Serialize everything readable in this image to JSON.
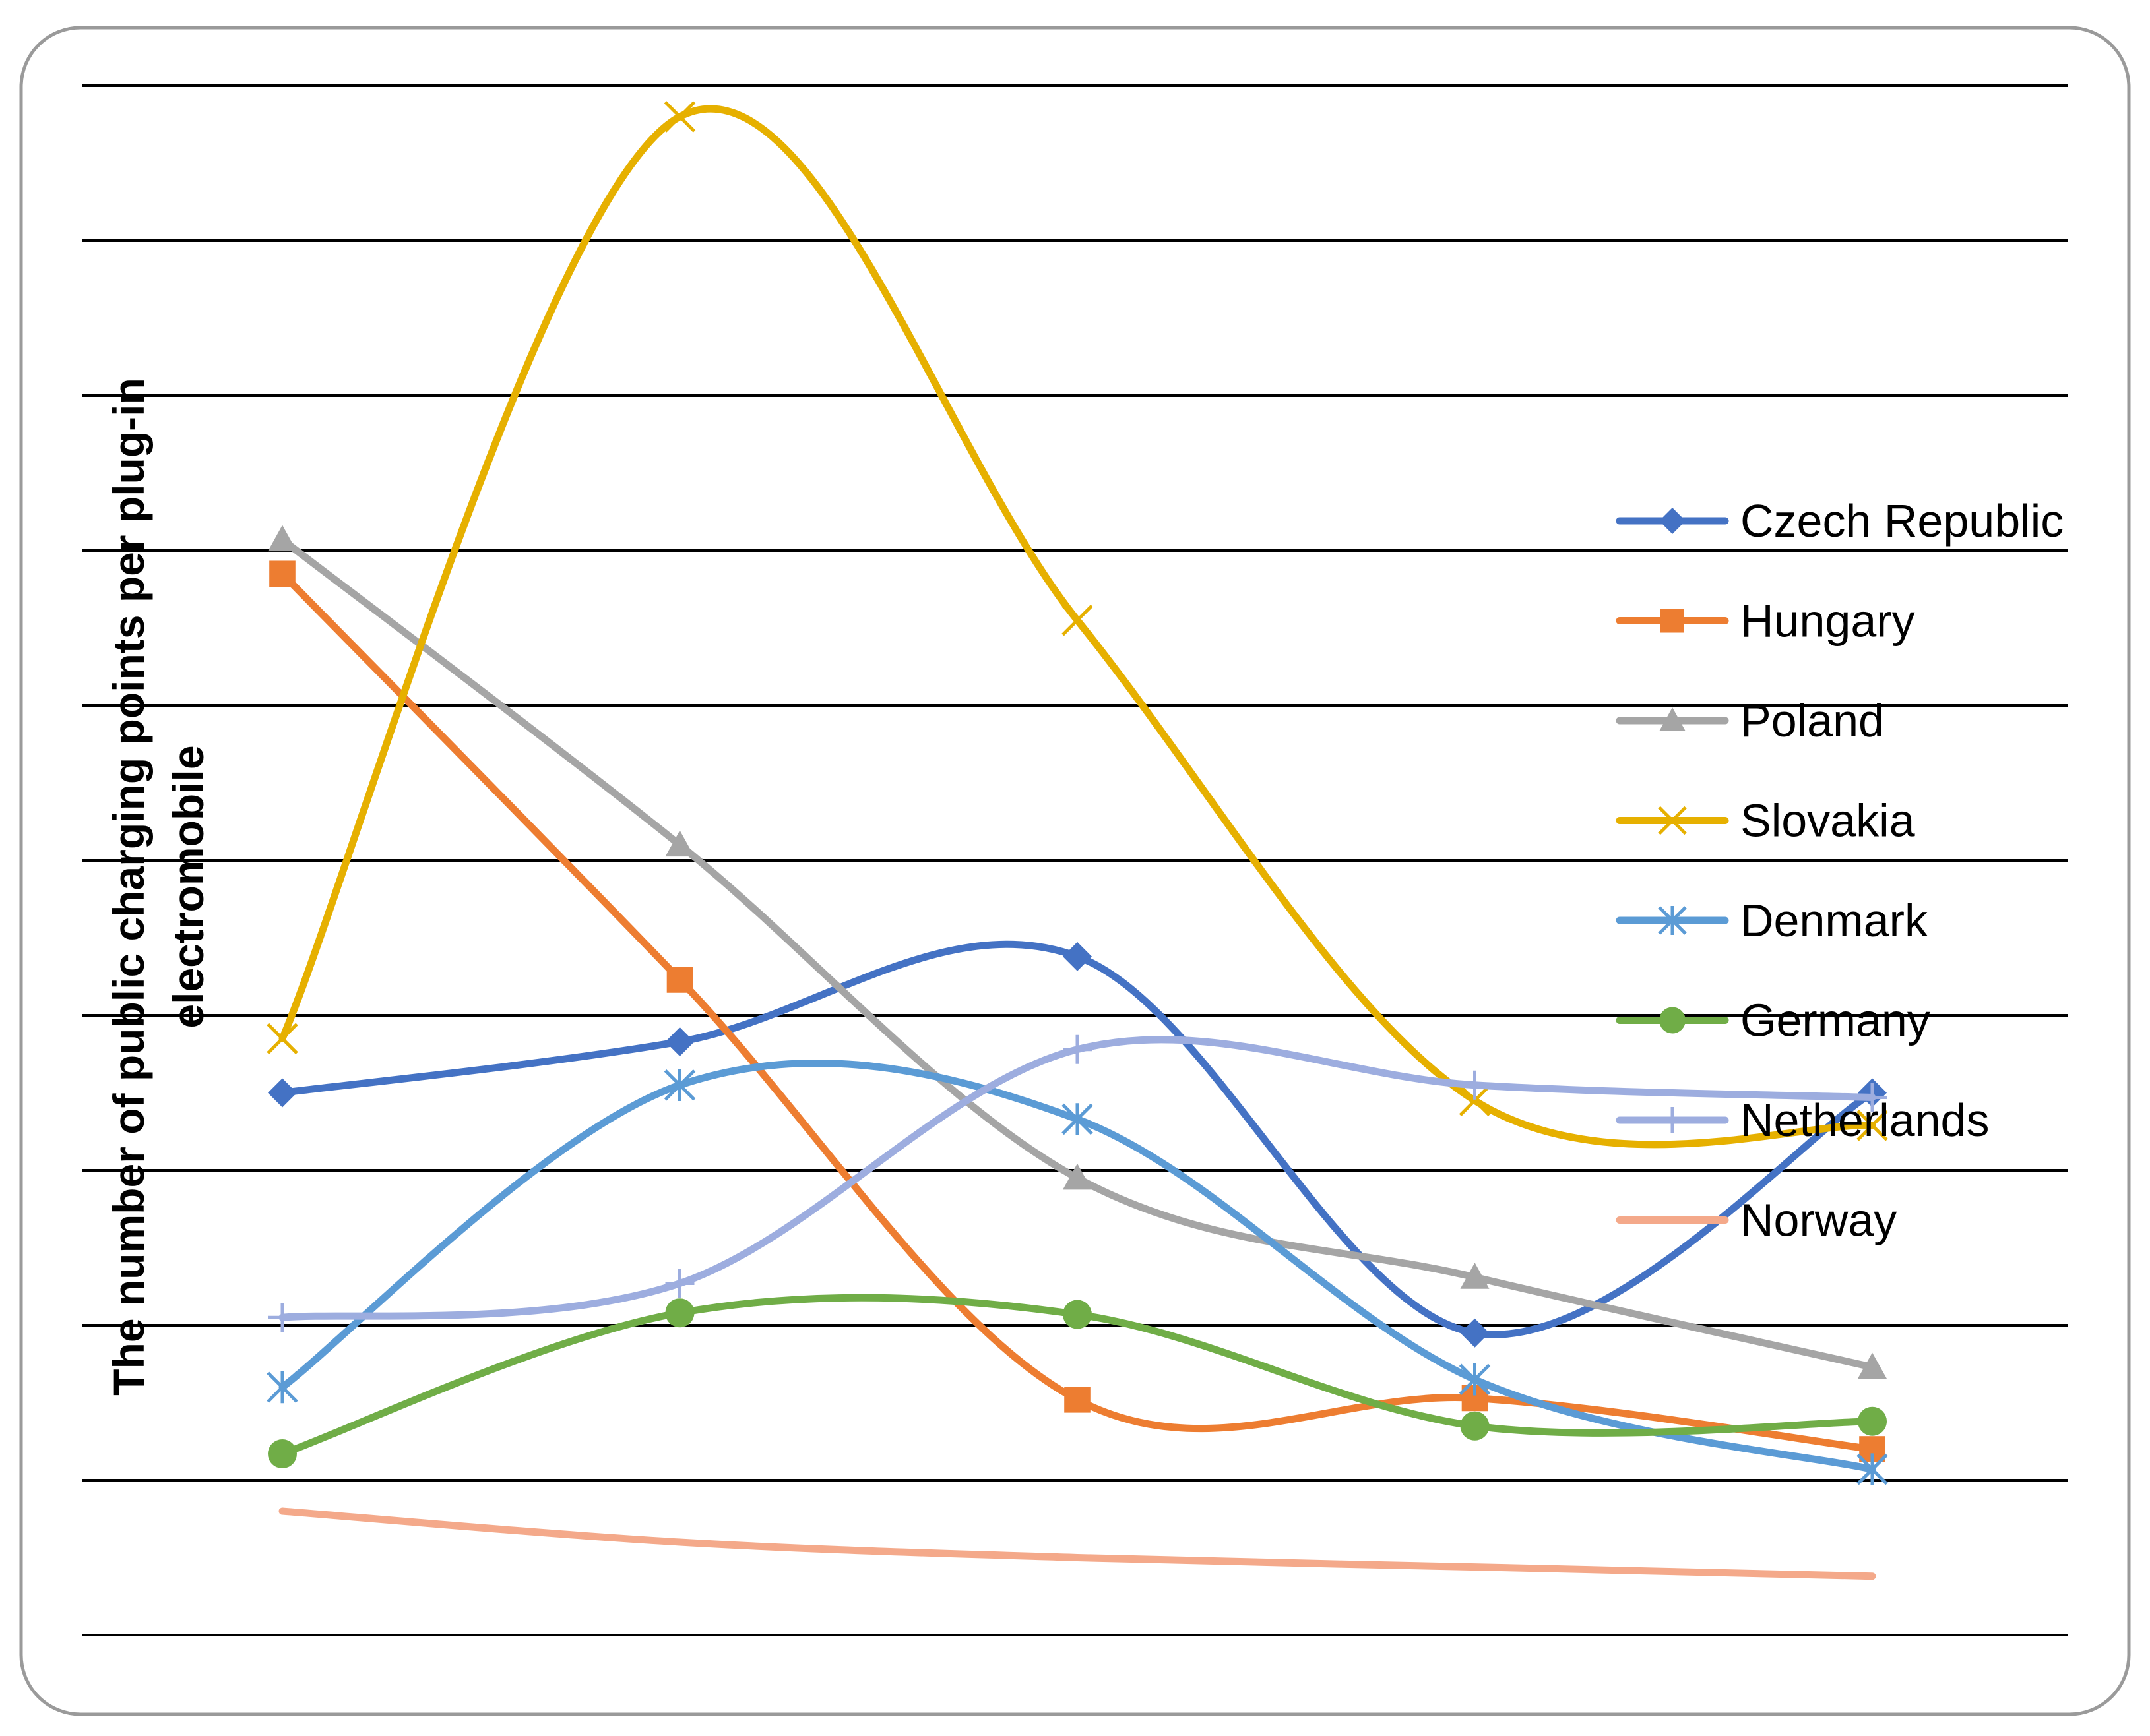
{
  "chart_data": {
    "type": "line",
    "smooth": true,
    "title": "",
    "xlabel": "",
    "ylabel_lines": [
      "The number of public charging points per plug-in",
      "electromobile"
    ],
    "x": [
      1,
      2,
      3,
      4,
      5
    ],
    "ylim": [
      0,
      9
    ],
    "grid": true,
    "legend_position": "right",
    "series": [
      {
        "name": "Czech Republic",
        "color": "#4472C4",
        "marker": "diamond",
        "values": [
          2.5,
          2.83,
          3.38,
          0.95,
          2.5
        ]
      },
      {
        "name": "Hungary",
        "color": "#ED7D31",
        "marker": "square",
        "values": [
          5.85,
          3.23,
          0.52,
          0.53,
          0.2
        ]
      },
      {
        "name": "Poland",
        "color": "#A5A5A5",
        "marker": "triangle",
        "values": [
          6.07,
          4.1,
          1.95,
          1.31,
          0.73
        ]
      },
      {
        "name": "Slovakia",
        "color": "#E6B000",
        "marker": "x",
        "values": [
          2.85,
          8.8,
          5.55,
          2.45,
          2.29
        ]
      },
      {
        "name": "Denmark",
        "color": "#5B9BD5",
        "marker": "asterisk",
        "values": [
          0.6,
          2.55,
          2.33,
          0.65,
          0.07
        ]
      },
      {
        "name": "Germany",
        "color": "#70AD47",
        "marker": "circle",
        "values": [
          0.17,
          1.08,
          1.07,
          0.35,
          0.38
        ]
      },
      {
        "name": "Netherlands",
        "color": "#9DADDF",
        "marker": "plus",
        "values": [
          1.05,
          1.27,
          2.78,
          2.55,
          2.47
        ]
      },
      {
        "name": "Norway",
        "color": "#F4A98A",
        "marker": "none",
        "values": [
          -0.2,
          -0.4,
          -0.5,
          -0.56,
          -0.62
        ]
      }
    ]
  }
}
